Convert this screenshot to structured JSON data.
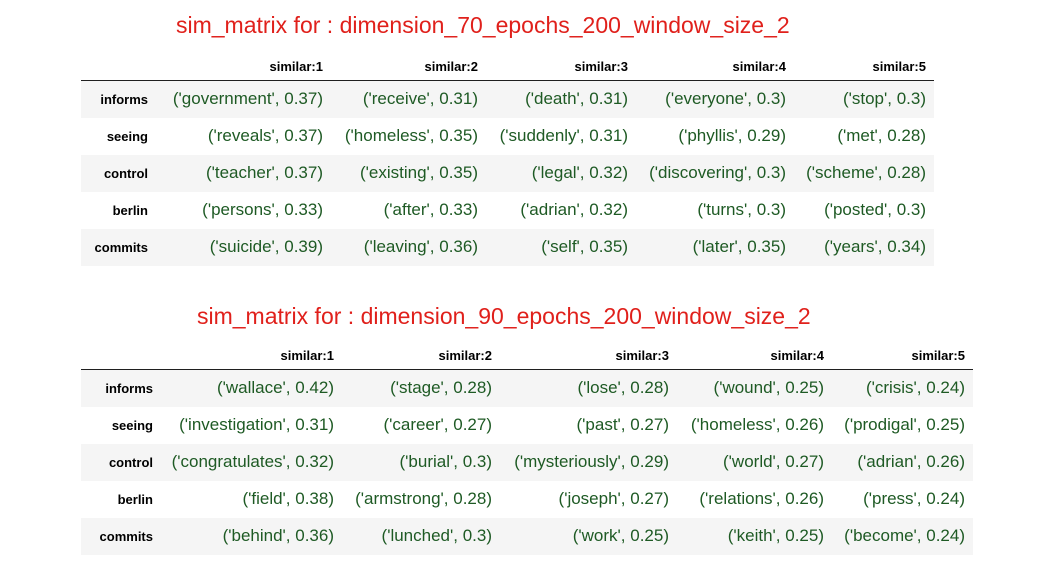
{
  "tables": [
    {
      "title": "sim_matrix for : dimension_70_epochs_200_window_size_2",
      "columns": [
        "similar:1",
        "similar:2",
        "similar:3",
        "similar:4",
        "similar:5"
      ],
      "rows": [
        {
          "label": "informs",
          "cells": [
            "('government', 0.37)",
            "('receive', 0.31)",
            "('death', 0.31)",
            "('everyone', 0.3)",
            "('stop', 0.3)"
          ]
        },
        {
          "label": "seeing",
          "cells": [
            "('reveals', 0.37)",
            "('homeless', 0.35)",
            "('suddenly', 0.31)",
            "('phyllis', 0.29)",
            "('met', 0.28)"
          ]
        },
        {
          "label": "control",
          "cells": [
            "('teacher', 0.37)",
            "('existing', 0.35)",
            "('legal', 0.32)",
            "('discovering', 0.3)",
            "('scheme', 0.28)"
          ]
        },
        {
          "label": "berlin",
          "cells": [
            "('persons', 0.33)",
            "('after', 0.33)",
            "('adrian', 0.32)",
            "('turns', 0.3)",
            "('posted', 0.3)"
          ]
        },
        {
          "label": "commits",
          "cells": [
            "('suicide', 0.39)",
            "('leaving', 0.36)",
            "('self', 0.35)",
            "('later', 0.35)",
            "('years', 0.34)"
          ]
        }
      ]
    },
    {
      "title": "sim_matrix for : dimension_90_epochs_200_window_size_2",
      "columns": [
        "similar:1",
        "similar:2",
        "similar:3",
        "similar:4",
        "similar:5"
      ],
      "rows": [
        {
          "label": "informs",
          "cells": [
            "('wallace', 0.42)",
            "('stage', 0.28)",
            "('lose', 0.28)",
            "('wound', 0.25)",
            "('crisis', 0.24)"
          ]
        },
        {
          "label": "seeing",
          "cells": [
            "('investigation', 0.31)",
            "('career', 0.27)",
            "('past', 0.27)",
            "('homeless', 0.26)",
            "('prodigal', 0.25)"
          ]
        },
        {
          "label": "control",
          "cells": [
            "('congratulates', 0.32)",
            "('burial', 0.3)",
            "('mysteriously', 0.29)",
            "('world', 0.27)",
            "('adrian', 0.26)"
          ]
        },
        {
          "label": "berlin",
          "cells": [
            "('field', 0.38)",
            "('armstrong', 0.28)",
            "('joseph', 0.27)",
            "('relations', 0.26)",
            "('press', 0.24)"
          ]
        },
        {
          "label": "commits",
          "cells": [
            "('behind', 0.36)",
            "('lunched', 0.3)",
            "('work', 0.25)",
            "('keith', 0.25)",
            "('become', 0.24)"
          ]
        }
      ]
    }
  ]
}
